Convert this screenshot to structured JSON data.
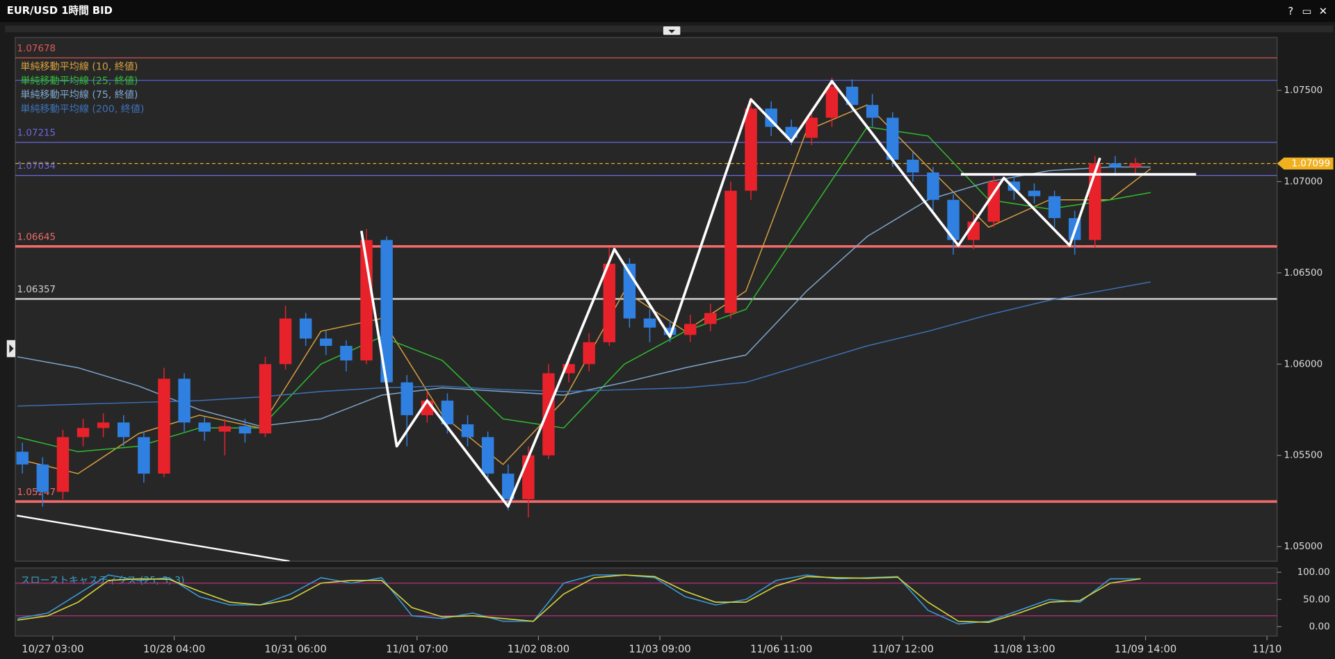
{
  "window": {
    "title": "EUR/USD 1時間 BID",
    "buttons": [
      "?",
      "▭",
      "✕"
    ]
  },
  "chart_data": [
    {
      "type": "candlestick",
      "xlim": [
        -7.4,
        242
      ],
      "ylim": [
        1.0492,
        1.0779
      ],
      "yticks": [
        {
          "value": 1.05,
          "label": "1.05000"
        },
        {
          "value": 1.055,
          "label": "1.05500"
        },
        {
          "value": 1.06,
          "label": "1.06000"
        },
        {
          "value": 1.065,
          "label": "1.06500"
        },
        {
          "value": 1.07,
          "label": "1.07000"
        },
        {
          "value": 1.075,
          "label": "1.07500"
        }
      ],
      "up_color": "#e8222a",
      "down_color": "#2f80e0",
      "candles": {
        "x": [
          -6,
          -2,
          2,
          6,
          10,
          14,
          18,
          22,
          26,
          30,
          34,
          38,
          42,
          46,
          50,
          54,
          58,
          62,
          66,
          70,
          74,
          78,
          82,
          86,
          90,
          94,
          98,
          102,
          106,
          110,
          114,
          118,
          122,
          126,
          130,
          134,
          138,
          142,
          146,
          150,
          154,
          158,
          162,
          166,
          170,
          174,
          178,
          182,
          186,
          190,
          194,
          198,
          202,
          206,
          210,
          214
        ],
        "open": [
          1.0552,
          1.0545,
          1.053,
          1.056,
          1.0565,
          1.0568,
          1.056,
          1.054,
          1.0592,
          1.0568,
          1.0563,
          1.0566,
          1.0562,
          1.06,
          1.0625,
          1.0614,
          1.061,
          1.0602,
          1.0668,
          1.059,
          1.0572,
          1.058,
          1.0567,
          1.056,
          1.054,
          1.0526,
          1.055,
          1.0595,
          1.06,
          1.0612,
          1.0655,
          1.0625,
          1.062,
          1.0616,
          1.0622,
          1.0628,
          1.0695,
          1.074,
          1.073,
          1.0724,
          1.0735,
          1.0752,
          1.0742,
          1.0735,
          1.0712,
          1.0705,
          1.069,
          1.0668,
          1.0678,
          1.07,
          1.0695,
          1.0692,
          1.068,
          1.0668,
          1.071,
          1.0708
        ],
        "high": [
          1.0557,
          1.0549,
          1.0564,
          1.057,
          1.0573,
          1.0572,
          1.0563,
          1.0598,
          1.0595,
          1.0571,
          1.057,
          1.057,
          1.0604,
          1.0632,
          1.0628,
          1.0618,
          1.0613,
          1.0674,
          1.067,
          1.0594,
          1.0585,
          1.0584,
          1.0572,
          1.0563,
          1.0545,
          1.0555,
          1.06,
          1.0605,
          1.0617,
          1.0664,
          1.0658,
          1.063,
          1.0624,
          1.0627,
          1.0633,
          1.07,
          1.0746,
          1.0744,
          1.0734,
          1.074,
          1.0757,
          1.0756,
          1.0748,
          1.0738,
          1.0716,
          1.0708,
          1.0693,
          1.0683,
          1.0704,
          1.0703,
          1.0699,
          1.0695,
          1.0684,
          1.0714,
          1.0714,
          1.0713
        ],
        "low": [
          1.054,
          1.0522,
          1.0526,
          1.0555,
          1.056,
          1.0555,
          1.0535,
          1.0538,
          1.0563,
          1.0558,
          1.055,
          1.0557,
          1.056,
          1.0597,
          1.061,
          1.0605,
          1.0596,
          1.06,
          1.0585,
          1.0555,
          1.0568,
          1.0562,
          1.0555,
          1.0535,
          1.052,
          1.0516,
          1.0548,
          1.059,
          1.0596,
          1.061,
          1.062,
          1.0612,
          1.0612,
          1.0612,
          1.0618,
          1.0625,
          1.069,
          1.0725,
          1.072,
          1.072,
          1.073,
          1.0738,
          1.073,
          1.0708,
          1.07,
          1.0684,
          1.066,
          1.0663,
          1.0675,
          1.069,
          1.0688,
          1.0675,
          1.066,
          1.0664,
          1.0703,
          1.0704
        ],
        "close": [
          1.0545,
          1.053,
          1.056,
          1.0565,
          1.0568,
          1.056,
          1.054,
          1.0592,
          1.0568,
          1.0563,
          1.0566,
          1.0562,
          1.06,
          1.0625,
          1.0614,
          1.061,
          1.0602,
          1.0668,
          1.059,
          1.0572,
          1.058,
          1.0567,
          1.056,
          1.054,
          1.0526,
          1.055,
          1.0595,
          1.06,
          1.0612,
          1.0655,
          1.0625,
          1.062,
          1.0616,
          1.0622,
          1.0628,
          1.0695,
          1.074,
          1.073,
          1.0724,
          1.0735,
          1.0752,
          1.0742,
          1.0735,
          1.0712,
          1.0705,
          1.069,
          1.0668,
          1.0678,
          1.07,
          1.0695,
          1.0692,
          1.068,
          1.0668,
          1.071,
          1.0708,
          1.071
        ]
      },
      "ma_x": [
        -7,
        5,
        17,
        29,
        41,
        53,
        65,
        77,
        89,
        101,
        113,
        125,
        137,
        149,
        161,
        173,
        185,
        197,
        209,
        217
      ],
      "series": [
        {
          "name": "単純移動平均線 (10, 終値)",
          "color": "#d9a040",
          "values": [
            1.0548,
            1.054,
            1.0562,
            1.0572,
            1.0565,
            1.0618,
            1.0625,
            1.0572,
            1.0545,
            1.058,
            1.064,
            1.0618,
            1.064,
            1.0728,
            1.0742,
            1.0708,
            1.0675,
            1.069,
            1.069,
            1.0707
          ]
        },
        {
          "name": "単純移動平均線 (25, 終値)",
          "color": "#2fbf2f",
          "values": [
            1.056,
            1.0552,
            1.0555,
            1.0565,
            1.0565,
            1.06,
            1.0615,
            1.0602,
            1.057,
            1.0565,
            1.06,
            1.0618,
            1.063,
            1.068,
            1.073,
            1.0725,
            1.069,
            1.0685,
            1.069,
            1.0694
          ]
        },
        {
          "name": "単純移動平均線 (75, 終値)",
          "color": "#7fa8d0",
          "values": [
            1.0604,
            1.0598,
            1.0588,
            1.0575,
            1.0566,
            1.057,
            1.0583,
            1.0587,
            1.0585,
            1.0583,
            1.059,
            1.0598,
            1.0605,
            1.064,
            1.067,
            1.069,
            1.07,
            1.0706,
            1.0708,
            1.0708
          ]
        },
        {
          "name": "単純移動平均線 (200, 終値)",
          "color": "#3d73b8",
          "values": [
            1.0577,
            1.0578,
            1.0579,
            1.058,
            1.0582,
            1.0585,
            1.0587,
            1.0588,
            1.0586,
            1.0585,
            1.0586,
            1.0587,
            1.059,
            1.06,
            1.061,
            1.0618,
            1.0627,
            1.0635,
            1.0641,
            1.0645
          ]
        }
      ],
      "levels": [
        {
          "value": 1.07678,
          "color": "#e05a5a",
          "width": 1,
          "labeled": true
        },
        {
          "value": 1.07555,
          "color": "#5a5ad6",
          "width": 1,
          "labeled": false
        },
        {
          "value": 1.07215,
          "color": "#6a6ae0",
          "width": 1,
          "labeled": true
        },
        {
          "value": 1.07034,
          "color": "#6a6ae0",
          "width": 1,
          "labeled": true
        },
        {
          "value": 1.06645,
          "color": "#f06a6a",
          "width": 3,
          "labeled": true
        },
        {
          "value": 1.06357,
          "color": "#d0d0d0",
          "width": 2,
          "labeled": true
        },
        {
          "value": 1.05247,
          "color": "#f06a6a",
          "width": 3,
          "labeled": true
        }
      ],
      "current_price": {
        "value": 1.07099,
        "color": "#f0b020"
      },
      "zigzag": {
        "color": "#ffffff",
        "x": [
          61,
          68,
          74,
          90,
          111,
          122,
          138,
          146,
          154,
          179,
          188,
          201,
          207
        ],
        "values": [
          1.0673,
          1.0555,
          1.058,
          1.0522,
          1.0663,
          1.0615,
          1.0745,
          1.0722,
          1.0755,
          1.0665,
          1.0702,
          1.0665,
          1.0713
        ]
      },
      "neckline": {
        "x": [
          179.5,
          226
        ],
        "values": [
          1.0704,
          1.0704
        ]
      },
      "trendline": {
        "x": [
          -7.1,
          46.8
        ],
        "values": [
          1.0517,
          1.0492
        ]
      }
    },
    {
      "type": "line",
      "title": "スローストキャスティクス (25, 3, 3)",
      "xlim": [
        -7.4,
        242
      ],
      "ylim": [
        -17.2,
        107.8
      ],
      "yticks": [
        {
          "value": 0,
          "label": "0.00"
        },
        {
          "value": 50,
          "label": "50.00"
        },
        {
          "value": 100,
          "label": "100.00"
        }
      ],
      "levels": [
        20,
        80
      ],
      "levels_color": "#b8307a",
      "xticks": [
        {
          "value": 0,
          "label": "10/27 03:00"
        },
        {
          "value": 24,
          "label": "10/28 04:00"
        },
        {
          "value": 48,
          "label": "10/31 06:00"
        },
        {
          "value": 72,
          "label": "11/01 07:00"
        },
        {
          "value": 96,
          "label": "11/02 08:00"
        },
        {
          "value": 120,
          "label": "11/03 09:00"
        },
        {
          "value": 144,
          "label": "11/06 11:00"
        },
        {
          "value": 168,
          "label": "11/07 12:00"
        },
        {
          "value": 192,
          "label": "11/08 13:00"
        },
        {
          "value": 216,
          "label": "11/09 14:00"
        },
        {
          "value": 240,
          "label": "11/10"
        }
      ],
      "x": [
        -7,
        -1,
        5,
        11,
        17,
        23,
        29,
        35,
        41,
        47,
        53,
        59,
        65,
        71,
        77,
        83,
        89,
        95,
        101,
        107,
        113,
        119,
        125,
        131,
        137,
        143,
        149,
        155,
        161,
        167,
        173,
        179,
        185,
        191,
        197,
        203,
        209,
        215
      ],
      "series": [
        {
          "color": "#3a9ad9",
          "values": [
            15,
            25,
            60,
            95,
            85,
            90,
            55,
            40,
            40,
            60,
            90,
            80,
            90,
            20,
            15,
            25,
            10,
            10,
            80,
            95,
            95,
            90,
            55,
            40,
            50,
            85,
            95,
            88,
            90,
            92,
            30,
            5,
            10,
            30,
            50,
            45,
            88,
            88
          ]
        },
        {
          "color": "#d8d83a",
          "values": [
            12,
            20,
            45,
            85,
            88,
            87,
            65,
            45,
            40,
            50,
            80,
            85,
            85,
            35,
            18,
            20,
            15,
            10,
            60,
            90,
            95,
            92,
            65,
            45,
            45,
            75,
            92,
            90,
            89,
            91,
            45,
            10,
            8,
            25,
            45,
            48,
            80,
            88
          ]
        }
      ]
    }
  ]
}
